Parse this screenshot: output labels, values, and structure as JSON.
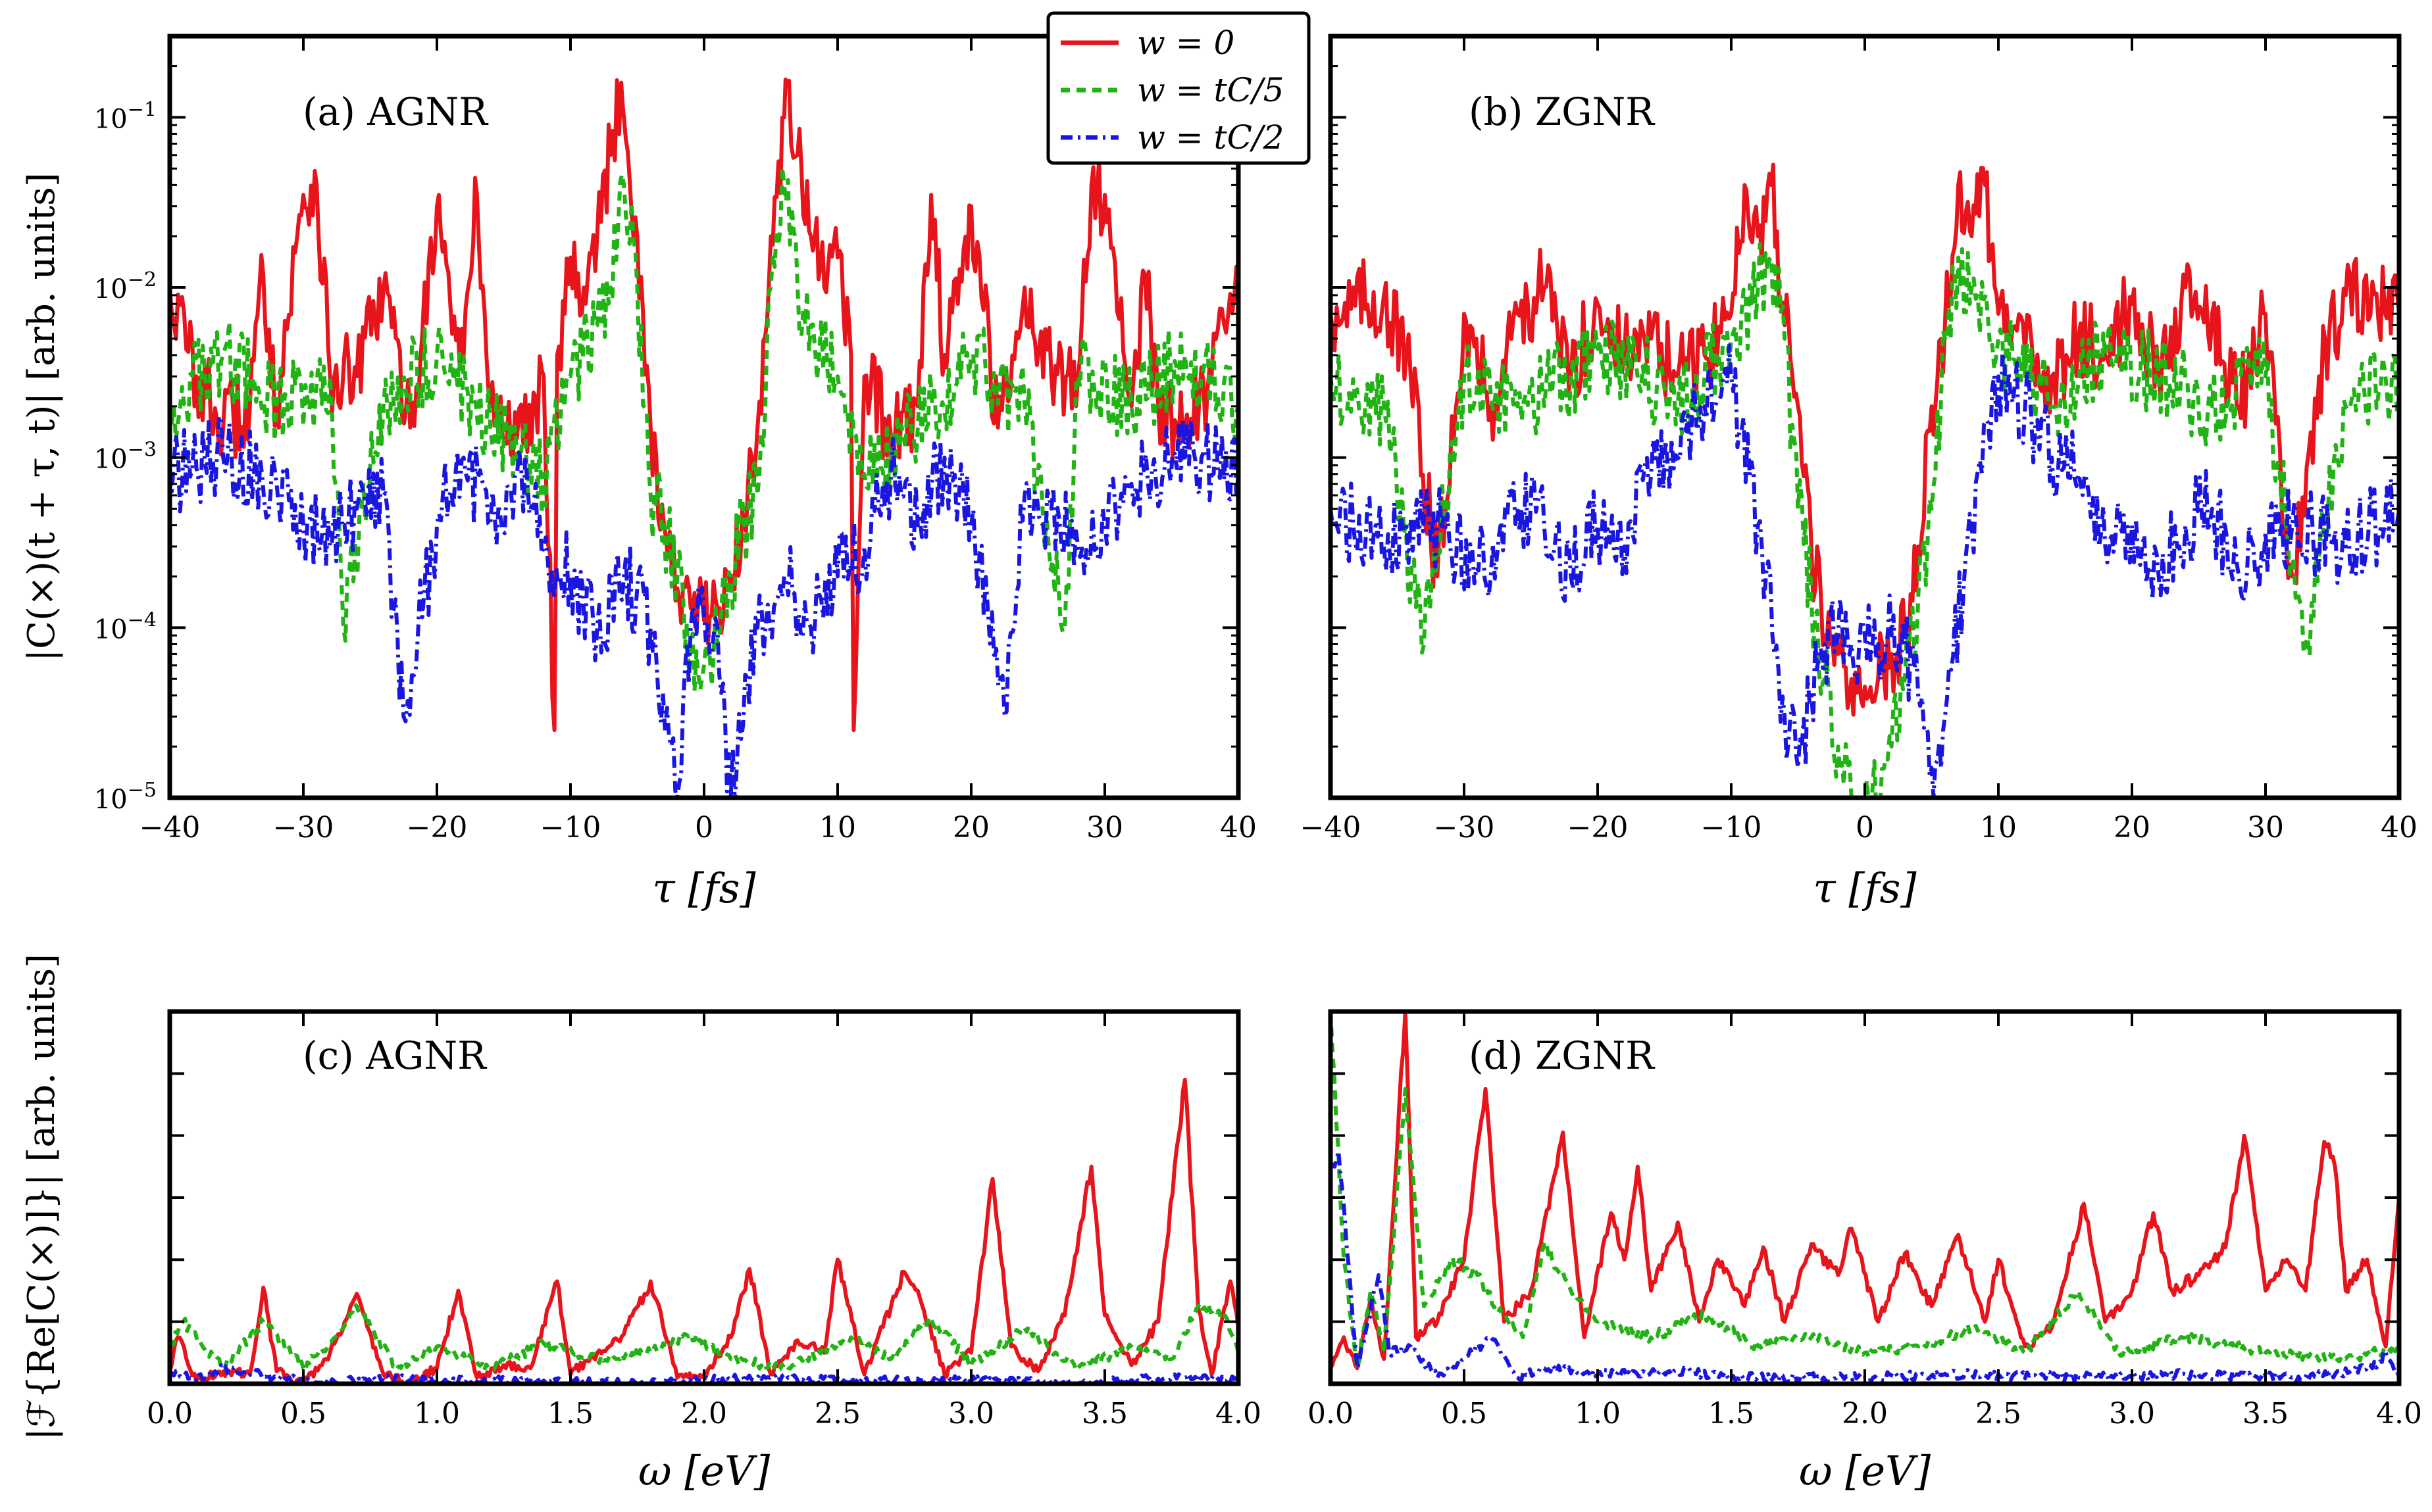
{
  "figure": {
    "ylabel_top": "|C(×)(t + τ, t)| [arb. units]",
    "ylabel_bottom": "|ℱ{Re[C(×)]}| [arb. units]"
  },
  "legend": {
    "placement": "top-center",
    "entries": [
      {
        "label": "w = 0",
        "color": "#e8141b",
        "style": "solid"
      },
      {
        "label": "w = tC/5",
        "color": "#21b214",
        "style": "dashed"
      },
      {
        "label": "w = tC/2",
        "color": "#1a16e2",
        "style": "dashdot"
      }
    ]
  },
  "chart_data": [
    {
      "panel": "a",
      "type": "line",
      "title": "(a) AGNR",
      "xlabel": "τ [fs]",
      "ylabel": "|C(×)(t + τ, t)| [arb. units]",
      "yscale": "log",
      "xlim": [
        -40,
        40
      ],
      "ylim": [
        1e-05,
        0.3
      ],
      "xticks": [
        "−40",
        "−30",
        "−20",
        "−10",
        "0",
        "10",
        "20",
        "30",
        "40"
      ],
      "yticks": [
        "10−5",
        "10−4",
        "10−3",
        "10−2",
        "10−1"
      ],
      "series": [
        {
          "name": "w = 0",
          "x": [
            -40,
            -38,
            -36,
            -34,
            -33,
            -32,
            -30,
            -29,
            -28,
            -26,
            -24,
            -22,
            -20,
            -19,
            -18,
            -17,
            -16,
            -14,
            -12,
            -11.2,
            -11,
            -10,
            -9,
            -8,
            -7,
            -6.2,
            -6,
            -5,
            -4,
            -3,
            -2,
            -1,
            0,
            1,
            2,
            3,
            4,
            5,
            6,
            6.2,
            7,
            8,
            9,
            10,
            11,
            11.2,
            12,
            14,
            16,
            17,
            18,
            19,
            20,
            22,
            24,
            26,
            28,
            29,
            30,
            32,
            33,
            34,
            36,
            38,
            40
          ],
          "values": [
            0.01,
            0.003,
            0.0015,
            0.002,
            0.012,
            0.002,
            0.035,
            0.04,
            0.003,
            0.003,
            0.01,
            0.0015,
            0.03,
            0.008,
            0.004,
            0.035,
            0.002,
            0.0013,
            0.003,
            2.5e-05,
            0.004,
            0.015,
            0.01,
            0.02,
            0.06,
            0.16,
            0.1,
            0.02,
            0.0015,
            0.0004,
            0.00017,
            0.00013,
            0.00011,
            0.00013,
            0.00017,
            0.0004,
            0.0015,
            0.02,
            0.1,
            0.16,
            0.06,
            0.02,
            0.01,
            0.015,
            0.004,
            2.5e-05,
            0.003,
            0.0013,
            0.002,
            0.035,
            0.004,
            0.008,
            0.03,
            0.0015,
            0.01,
            0.003,
            0.003,
            0.04,
            0.035,
            0.002,
            0.012,
            0.002,
            0.0015,
            0.003,
            0.01
          ]
        },
        {
          "name": "w = tC/5",
          "x": [
            -40,
            -36,
            -32,
            -28,
            -27,
            -24,
            -20,
            -16,
            -12,
            -10,
            -8,
            -7,
            -6,
            -5,
            -4,
            -3,
            -2,
            -1,
            0,
            1,
            2,
            3,
            4,
            5,
            6,
            7,
            8,
            10,
            12,
            16,
            20,
            24,
            27,
            28,
            32,
            36,
            40
          ],
          "values": [
            0.002,
            0.004,
            0.002,
            0.003,
            0.0001,
            0.002,
            0.004,
            0.0015,
            0.0008,
            0.003,
            0.006,
            0.01,
            0.04,
            0.01,
            0.0006,
            0.0004,
            0.0002,
            8e-05,
            6e-05,
            8e-05,
            0.0002,
            0.0004,
            0.0006,
            0.01,
            0.04,
            0.01,
            0.006,
            0.003,
            0.0008,
            0.0015,
            0.004,
            0.002,
            0.0001,
            0.003,
            0.002,
            0.004,
            0.002
          ]
        },
        {
          "name": "w = tC/2",
          "x": [
            -40,
            -36,
            -32,
            -30,
            -28,
            -26,
            -24,
            -22.5,
            -20,
            -18,
            -16,
            -14,
            -12,
            -10,
            -8,
            -6,
            -4,
            -2,
            -1,
            0,
            1,
            2,
            4,
            6,
            8,
            10,
            12,
            14,
            16,
            18,
            20,
            22.5,
            24,
            26,
            28,
            30,
            32,
            36,
            40
          ],
          "values": [
            0.0008,
            0.001,
            0.0007,
            0.0004,
            0.0003,
            0.0005,
            0.0006,
            3e-05,
            0.0004,
            0.001,
            0.0004,
            0.0008,
            0.0003,
            0.0002,
            0.0001,
            0.0002,
            0.0001,
            1e-05,
            0.0001,
            0.00012,
            0.0001,
            1e-05,
            0.0001,
            0.0002,
            0.0001,
            0.0002,
            0.0003,
            0.0008,
            0.0004,
            0.001,
            0.0004,
            3e-05,
            0.0006,
            0.0005,
            0.0003,
            0.0004,
            0.0007,
            0.001,
            0.0008
          ]
        }
      ]
    },
    {
      "panel": "b",
      "type": "line",
      "title": "(b) ZGNR",
      "xlabel": "τ [fs]",
      "yscale": "log",
      "xlim": [
        -40,
        40
      ],
      "ylim": [
        1e-05,
        0.3
      ],
      "xticks": [
        "−40",
        "−30",
        "−20",
        "−10",
        "0",
        "10",
        "20",
        "30",
        "40"
      ],
      "series": [
        {
          "name": "w = 0",
          "x": [
            -40,
            -36,
            -34,
            -32,
            -30,
            -28,
            -26,
            -24,
            -22,
            -20,
            -18,
            -16,
            -14,
            -12,
            -10,
            -9,
            -8,
            -7,
            -6,
            -5,
            -4,
            -3,
            -2,
            -1,
            0,
            1,
            2,
            3,
            4,
            5,
            6,
            7,
            8,
            9,
            10,
            12,
            14,
            16,
            18,
            20,
            22,
            24,
            26,
            28,
            30,
            32,
            34,
            36,
            40
          ],
          "values": [
            0.007,
            0.009,
            0.003,
            0.0002,
            0.007,
            0.002,
            0.007,
            0.01,
            0.003,
            0.008,
            0.004,
            0.005,
            0.003,
            0.004,
            0.007,
            0.04,
            0.02,
            0.04,
            0.006,
            0.002,
            0.0003,
            9e-05,
            7e-05,
            5e-05,
            4.5e-05,
            5e-05,
            7e-05,
            9e-05,
            0.0003,
            0.002,
            0.006,
            0.04,
            0.02,
            0.04,
            0.007,
            0.004,
            0.003,
            0.005,
            0.004,
            0.008,
            0.003,
            0.01,
            0.007,
            0.002,
            0.007,
            0.0002,
            0.003,
            0.009,
            0.007
          ]
        },
        {
          "name": "w = tC/5",
          "x": [
            -40,
            -36,
            -33,
            -30,
            -26,
            -22,
            -18,
            -14,
            -12,
            -10,
            -8,
            -7,
            -6,
            -5,
            -4,
            -3,
            -2,
            -1,
            0,
            1,
            2,
            3,
            4,
            5,
            6,
            7,
            8,
            10,
            12,
            14,
            18,
            22,
            26,
            30,
            33,
            36,
            40
          ],
          "values": [
            0.003,
            0.002,
            8e-05,
            0.003,
            0.002,
            0.003,
            0.004,
            0.002,
            0.003,
            0.005,
            0.01,
            0.015,
            0.005,
            0.0005,
            0.00015,
            5e-05,
            2e-05,
            1e-05,
            8e-06,
            1e-05,
            2e-05,
            5e-05,
            0.00015,
            0.0005,
            0.005,
            0.015,
            0.01,
            0.005,
            0.003,
            0.002,
            0.004,
            0.003,
            0.002,
            0.003,
            8e-05,
            0.002,
            0.003
          ]
        },
        {
          "name": "w = tC/2",
          "x": [
            -40,
            -36,
            -32,
            -28,
            -26,
            -24,
            -22,
            -20,
            -18,
            -16,
            -14,
            -12,
            -10,
            -8,
            -6,
            -5,
            -4,
            -3,
            -2,
            -1,
            0,
            1,
            2,
            3,
            4,
            5,
            6,
            8,
            10,
            12,
            14,
            16,
            18,
            20,
            22,
            24,
            26,
            28,
            32,
            36,
            40
          ],
          "values": [
            0.0005,
            0.0003,
            0.0004,
            0.0002,
            0.0005,
            0.0004,
            0.0002,
            0.0004,
            0.0003,
            0.0008,
            0.001,
            0.002,
            0.003,
            0.0004,
            3e-05,
            1.5e-05,
            4e-05,
            8e-05,
            9e-05,
            8e-05,
            9e-05,
            8e-05,
            9e-05,
            8e-05,
            4e-05,
            1.5e-05,
            3e-05,
            0.0004,
            0.003,
            0.002,
            0.001,
            0.0008,
            0.0003,
            0.0004,
            0.0002,
            0.0004,
            0.0005,
            0.0002,
            0.0004,
            0.0003,
            0.0005
          ]
        }
      ]
    },
    {
      "panel": "c",
      "type": "line",
      "title": "(c) AGNR",
      "xlabel": "ω [eV]",
      "ylabel": "|ℱ{Re[C(×)]}| [arb. units]",
      "xlim": [
        0,
        4
      ],
      "ylim": [
        0,
        1.2
      ],
      "xticks": [
        "0.0",
        "0.5",
        "1.0",
        "1.5",
        "2.0",
        "2.5",
        "3.0",
        "3.5",
        "4.0"
      ],
      "series": [
        {
          "name": "w = 0",
          "x": [
            0,
            0.03,
            0.1,
            0.2,
            0.3,
            0.35,
            0.4,
            0.5,
            0.6,
            0.7,
            0.8,
            0.9,
            1.0,
            1.08,
            1.15,
            1.25,
            1.35,
            1.45,
            1.5,
            1.6,
            1.7,
            1.8,
            1.9,
            2.0,
            2.1,
            2.17,
            2.25,
            2.35,
            2.45,
            2.5,
            2.6,
            2.7,
            2.75,
            2.8,
            2.9,
            3.0,
            3.08,
            3.15,
            3.25,
            3.35,
            3.45,
            3.5,
            3.6,
            3.7,
            3.8,
            3.85,
            3.9,
            3.97,
            4.0
          ],
          "values": [
            0.04,
            0.15,
            0.01,
            0.04,
            0.03,
            0.31,
            0.04,
            0.0,
            0.1,
            0.29,
            0.03,
            0.0,
            0.05,
            0.3,
            0.02,
            0.06,
            0.05,
            0.33,
            0.03,
            0.1,
            0.16,
            0.33,
            0.02,
            0.03,
            0.15,
            0.37,
            0.03,
            0.14,
            0.1,
            0.4,
            0.03,
            0.25,
            0.36,
            0.3,
            0.03,
            0.1,
            0.66,
            0.12,
            0.04,
            0.22,
            0.7,
            0.22,
            0.06,
            0.2,
            0.98,
            0.24,
            0.03,
            0.33,
            0.18
          ]
        },
        {
          "name": "w = tC/5",
          "x": [
            0,
            0.05,
            0.2,
            0.35,
            0.5,
            0.65,
            0.7,
            0.85,
            1.0,
            1.2,
            1.4,
            1.6,
            1.8,
            1.95,
            2.1,
            2.3,
            2.55,
            2.7,
            2.85,
            3.0,
            3.2,
            3.4,
            3.6,
            3.75,
            3.85,
            3.95,
            4.0
          ],
          "values": [
            0.12,
            0.2,
            0.05,
            0.2,
            0.05,
            0.18,
            0.25,
            0.05,
            0.12,
            0.05,
            0.13,
            0.08,
            0.1,
            0.16,
            0.08,
            0.05,
            0.15,
            0.08,
            0.21,
            0.06,
            0.18,
            0.05,
            0.12,
            0.08,
            0.25,
            0.22,
            0.1
          ]
        },
        {
          "name": "w = tC/2",
          "x": [
            0,
            0.1,
            0.2,
            0.4,
            0.6,
            0.8,
            1.0,
            1.4,
            1.8,
            2.2,
            2.6,
            3.0,
            3.4,
            3.8,
            4.0
          ],
          "values": [
            0.04,
            0.01,
            0.05,
            0.02,
            0.0,
            0.02,
            0.01,
            0.01,
            0.0,
            0.02,
            0.01,
            0.01,
            0.0,
            0.02,
            0.01
          ]
        }
      ]
    },
    {
      "panel": "d",
      "type": "line",
      "title": "(d) ZGNR",
      "xlabel": "ω [eV]",
      "xlim": [
        0,
        4
      ],
      "ylim": [
        0,
        1.2
      ],
      "xticks": [
        "0.0",
        "0.5",
        "1.0",
        "1.5",
        "2.0",
        "2.5",
        "3.0",
        "3.5",
        "4.0"
      ],
      "series": [
        {
          "name": "w = 0",
          "x": [
            0,
            0.05,
            0.1,
            0.15,
            0.2,
            0.28,
            0.32,
            0.4,
            0.5,
            0.58,
            0.65,
            0.75,
            0.87,
            0.95,
            1.05,
            1.1,
            1.15,
            1.2,
            1.3,
            1.38,
            1.45,
            1.55,
            1.62,
            1.7,
            1.8,
            1.9,
            1.95,
            2.05,
            2.15,
            2.25,
            2.35,
            2.45,
            2.5,
            2.6,
            2.7,
            2.82,
            2.9,
            3.0,
            3.08,
            3.15,
            3.25,
            3.35,
            3.42,
            3.5,
            3.58,
            3.65,
            3.72,
            3.76,
            3.8,
            3.88,
            3.95,
            4.0
          ],
          "values": [
            0.05,
            0.15,
            0.05,
            0.28,
            0.08,
            1.2,
            0.15,
            0.2,
            0.4,
            0.95,
            0.2,
            0.3,
            0.81,
            0.15,
            0.55,
            0.4,
            0.7,
            0.3,
            0.52,
            0.2,
            0.4,
            0.25,
            0.44,
            0.2,
            0.45,
            0.35,
            0.5,
            0.2,
            0.42,
            0.25,
            0.48,
            0.2,
            0.4,
            0.12,
            0.18,
            0.58,
            0.2,
            0.3,
            0.55,
            0.3,
            0.35,
            0.44,
            0.8,
            0.3,
            0.4,
            0.3,
            0.78,
            0.7,
            0.3,
            0.4,
            0.12,
            0.6
          ]
        },
        {
          "name": "w = tC/5",
          "x": [
            0,
            0.05,
            0.1,
            0.15,
            0.2,
            0.28,
            0.35,
            0.45,
            0.55,
            0.62,
            0.72,
            0.8,
            0.9,
            1.0,
            1.2,
            1.4,
            1.6,
            1.8,
            2.0,
            2.2,
            2.4,
            2.6,
            2.8,
            2.95,
            3.2,
            3.5,
            3.8,
            4.0
          ],
          "values": [
            1.2,
            0.4,
            0.05,
            0.3,
            0.1,
            0.95,
            0.25,
            0.4,
            0.35,
            0.25,
            0.15,
            0.45,
            0.3,
            0.2,
            0.15,
            0.22,
            0.12,
            0.15,
            0.1,
            0.12,
            0.18,
            0.1,
            0.3,
            0.1,
            0.15,
            0.1,
            0.08,
            0.12
          ]
        },
        {
          "name": "w = tC/2",
          "x": [
            0,
            0.03,
            0.1,
            0.18,
            0.22,
            0.3,
            0.4,
            0.5,
            0.6,
            0.7,
            0.8,
            1.0,
            1.3,
            1.6,
            2.0,
            2.4,
            2.8,
            3.2,
            3.6,
            3.9,
            3.95,
            4.0
          ],
          "values": [
            0.7,
            0.75,
            0.05,
            0.35,
            0.1,
            0.12,
            0.02,
            0.08,
            0.15,
            0.02,
            0.05,
            0.03,
            0.04,
            0.02,
            0.02,
            0.03,
            0.02,
            0.03,
            0.02,
            0.05,
            0.1,
            0.02
          ]
        }
      ]
    }
  ]
}
